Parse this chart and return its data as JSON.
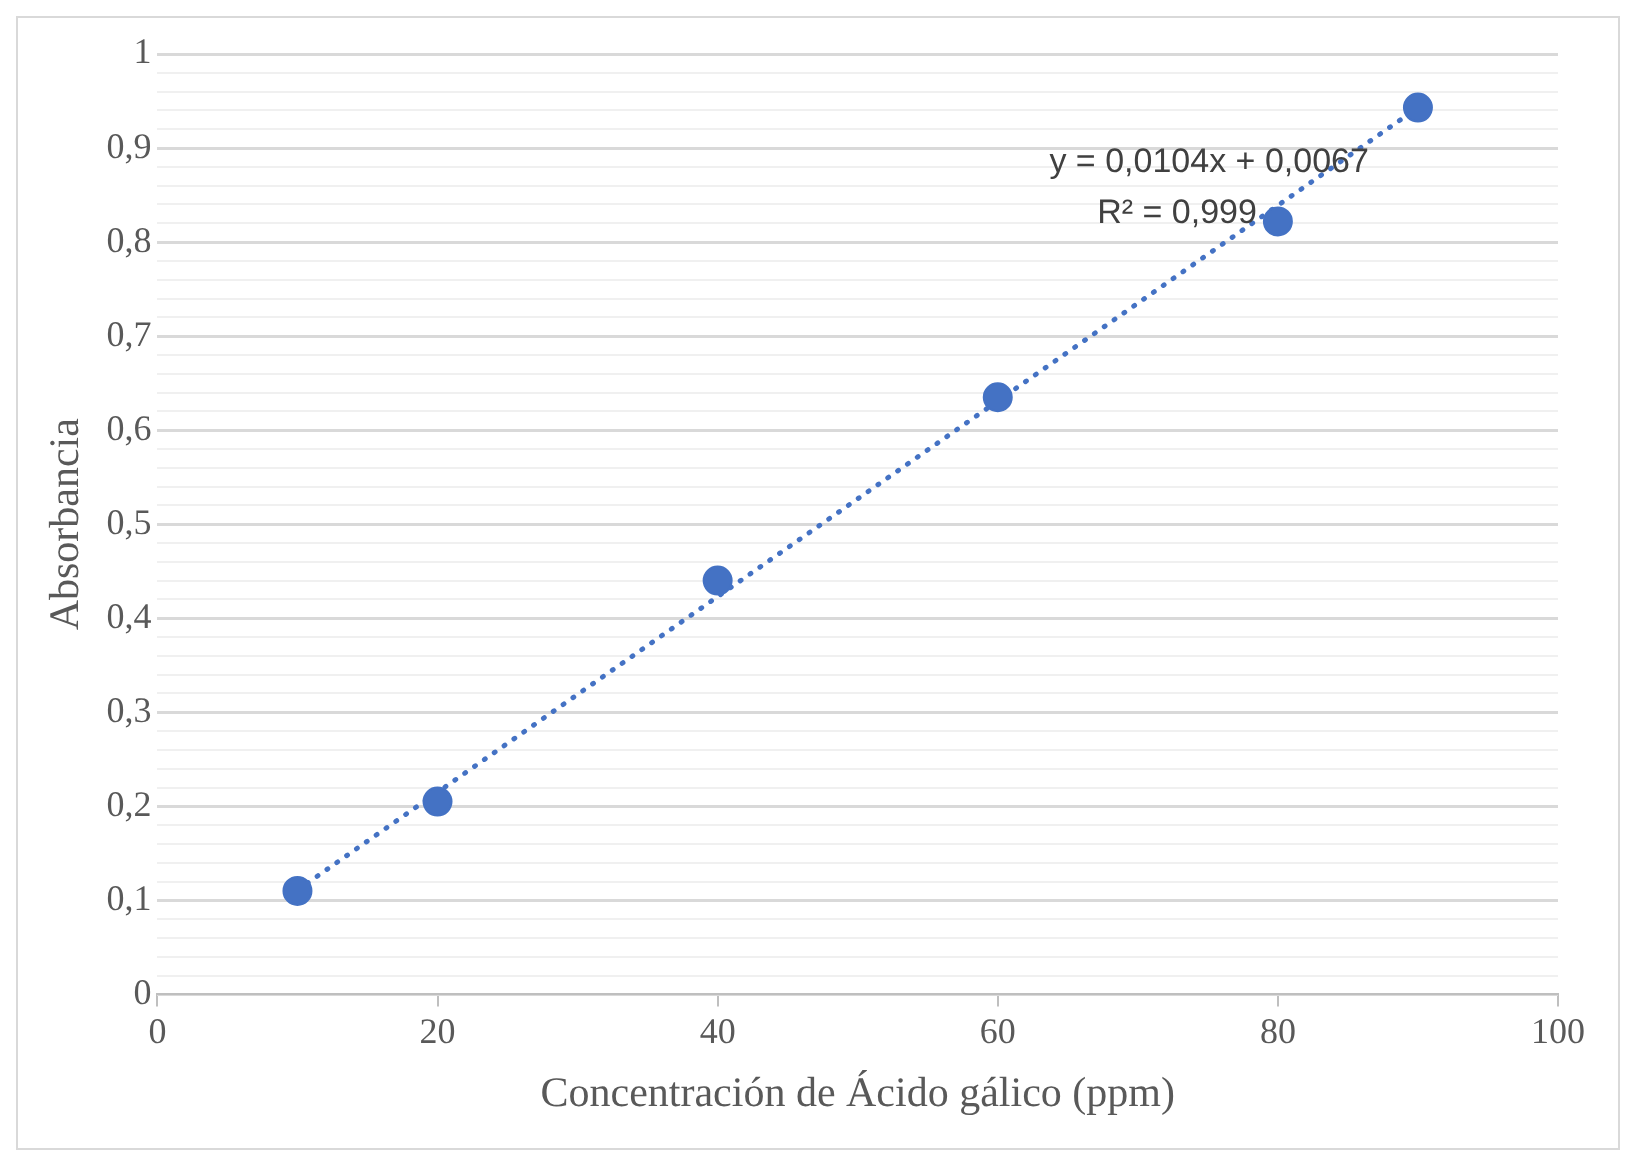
{
  "chart_data": {
    "type": "scatter",
    "xlabel": "Concentración de Ácido gálico (ppm)",
    "ylabel": "Absorbancia",
    "x": [
      10,
      20,
      40,
      60,
      80,
      90
    ],
    "series": [
      {
        "type": "scatter",
        "color": "#4472c4",
        "marker": "circle",
        "values": [
          0.11,
          0.205,
          0.44,
          0.635,
          0.822,
          0.943
        ]
      },
      {
        "type": "line",
        "color": "#4472c4",
        "marker": "none",
        "line_style": "dotted",
        "x": [
          10,
          90
        ],
        "values": [
          0.111,
          0.943
        ]
      }
    ],
    "xlim": [
      0,
      100
    ],
    "xticks": [
      0,
      20,
      40,
      60,
      80,
      100
    ],
    "ylim": [
      0,
      1
    ],
    "yticks": [
      {
        "value": 0,
        "label": "0"
      },
      {
        "value": 0.02,
        "label": null
      },
      {
        "value": 0.04,
        "label": null
      },
      {
        "value": 0.06,
        "label": null
      },
      {
        "value": 0.08,
        "label": null
      },
      {
        "value": 0.1,
        "label": "0,1"
      },
      {
        "value": 0.12,
        "label": null
      },
      {
        "value": 0.14,
        "label": null
      },
      {
        "value": 0.16,
        "label": null
      },
      {
        "value": 0.18,
        "label": null
      },
      {
        "value": 0.2,
        "label": "0,2"
      },
      {
        "value": 0.22,
        "label": null
      },
      {
        "value": 0.24,
        "label": null
      },
      {
        "value": 0.26,
        "label": null
      },
      {
        "value": 0.28,
        "label": null
      },
      {
        "value": 0.3,
        "label": "0,3"
      },
      {
        "value": 0.32,
        "label": null
      },
      {
        "value": 0.34,
        "label": null
      },
      {
        "value": 0.36,
        "label": null
      },
      {
        "value": 0.38,
        "label": null
      },
      {
        "value": 0.4,
        "label": "0,4"
      },
      {
        "value": 0.42,
        "label": null
      },
      {
        "value": 0.44,
        "label": null
      },
      {
        "value": 0.46,
        "label": null
      },
      {
        "value": 0.48,
        "label": null
      },
      {
        "value": 0.5,
        "label": "0,5"
      },
      {
        "value": 0.52,
        "label": null
      },
      {
        "value": 0.54,
        "label": null
      },
      {
        "value": 0.56,
        "label": null
      },
      {
        "value": 0.58,
        "label": null
      },
      {
        "value": 0.6,
        "label": "0,6"
      },
      {
        "value": 0.62,
        "label": null
      },
      {
        "value": 0.64,
        "label": null
      },
      {
        "value": 0.66,
        "label": null
      },
      {
        "value": 0.68,
        "label": null
      },
      {
        "value": 0.7,
        "label": "0,7"
      },
      {
        "value": 0.72,
        "label": null
      },
      {
        "value": 0.74,
        "label": null
      },
      {
        "value": 0.76,
        "label": null
      },
      {
        "value": 0.78,
        "label": null
      },
      {
        "value": 0.8,
        "label": "0,8"
      },
      {
        "value": 0.82,
        "label": null
      },
      {
        "value": 0.84,
        "label": null
      },
      {
        "value": 0.86,
        "label": null
      },
      {
        "value": 0.88,
        "label": null
      },
      {
        "value": 0.9,
        "label": "0,9"
      },
      {
        "value": 0.92,
        "label": null
      },
      {
        "value": 0.94,
        "label": null
      },
      {
        "value": 0.96,
        "label": null
      },
      {
        "value": 0.98,
        "label": null
      },
      {
        "value": 1,
        "label": "1"
      }
    ],
    "grid": "y",
    "legend": false,
    "annotations": [
      "y = 0,0104x + 0,0067",
      "R² = 0,999"
    ]
  }
}
